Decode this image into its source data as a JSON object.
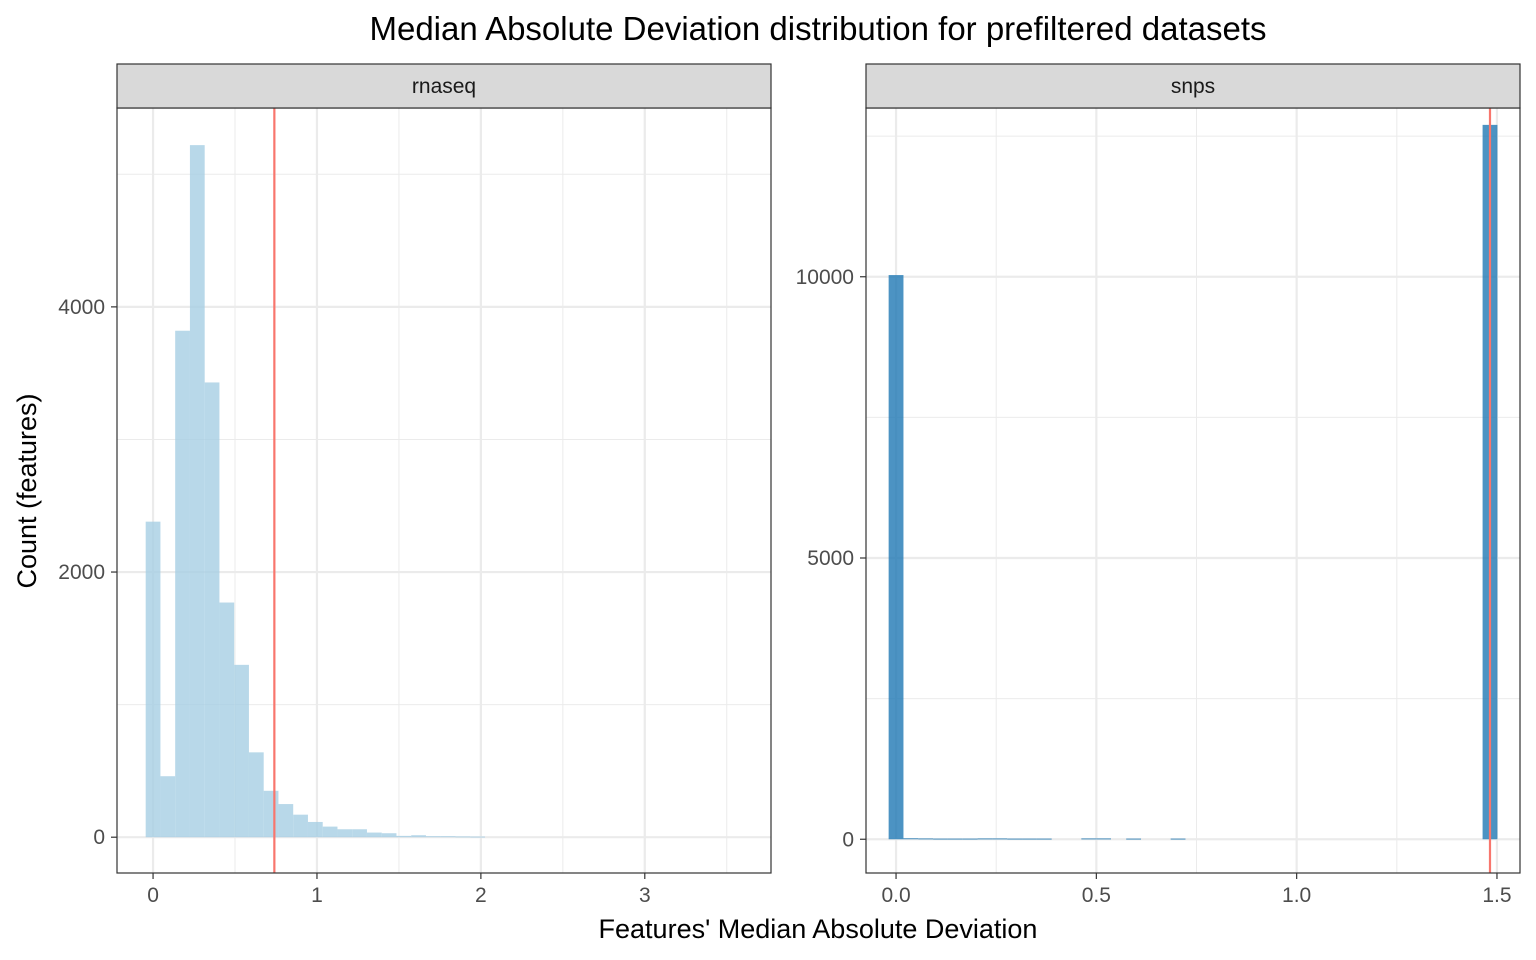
{
  "chart_data": {
    "type": "bar",
    "title": "Median Absolute Deviation distribution for prefiltered datasets",
    "xlabel": "Features' Median Absolute Deviation",
    "ylabel": "Count (features)",
    "grid": true,
    "legend": "none",
    "colors": {
      "panel_background": "#ffffff",
      "grid": "#ebebeb",
      "strip_fill": "#d9d9d9",
      "border": "#333333",
      "threshold_line": "#f8766d"
    },
    "panels": [
      {
        "strip_label": "rnaseq",
        "bar_color": "#a6cee3",
        "bar_opacity": 0.8,
        "threshold": 0.74,
        "xlim": [
          -0.22,
          3.77
        ],
        "ylim": [
          -270,
          5500
        ],
        "x_ticks": [
          0,
          1,
          2,
          3
        ],
        "x_tick_labels": [
          "0",
          "1",
          "2",
          "3"
        ],
        "x_minor_ticks": [
          0.5,
          1.5,
          2.5,
          3.5
        ],
        "y_ticks": [
          0,
          2000,
          4000
        ],
        "y_tick_labels": [
          "0",
          "2000",
          "4000"
        ],
        "y_minor_ticks": [
          1000,
          3000,
          5000
        ],
        "bin_width": 0.09,
        "bins": [
          {
            "x": 0.0,
            "count": 2380
          },
          {
            "x": 0.09,
            "count": 460
          },
          {
            "x": 0.18,
            "count": 3820
          },
          {
            "x": 0.27,
            "count": 5220
          },
          {
            "x": 0.36,
            "count": 3430
          },
          {
            "x": 0.45,
            "count": 1770
          },
          {
            "x": 0.54,
            "count": 1300
          },
          {
            "x": 0.63,
            "count": 640
          },
          {
            "x": 0.72,
            "count": 350
          },
          {
            "x": 0.81,
            "count": 250
          },
          {
            "x": 0.9,
            "count": 170
          },
          {
            "x": 0.99,
            "count": 115
          },
          {
            "x": 1.08,
            "count": 80
          },
          {
            "x": 1.17,
            "count": 60
          },
          {
            "x": 1.26,
            "count": 60
          },
          {
            "x": 1.35,
            "count": 35
          },
          {
            "x": 1.44,
            "count": 30
          },
          {
            "x": 1.53,
            "count": 10
          },
          {
            "x": 1.62,
            "count": 15
          },
          {
            "x": 1.71,
            "count": 8
          },
          {
            "x": 1.8,
            "count": 8
          },
          {
            "x": 1.89,
            "count": 6
          },
          {
            "x": 1.98,
            "count": 5
          }
        ]
      },
      {
        "strip_label": "snps",
        "bar_color": "#1f78b4",
        "bar_opacity": 0.8,
        "threshold": 1.4826,
        "xlim": [
          -0.075,
          1.5575
        ],
        "ylim": [
          -600,
          13000
        ],
        "x_ticks": [
          0.0,
          0.5,
          1.0,
          1.5
        ],
        "x_tick_labels": [
          "0.0",
          "0.5",
          "1.0",
          "1.5"
        ],
        "x_minor_ticks": [
          0.25,
          0.75,
          1.25
        ],
        "y_ticks": [
          0,
          5000,
          10000
        ],
        "y_tick_labels": [
          "0",
          "5000",
          "10000"
        ],
        "y_minor_ticks": [
          2500,
          7500,
          12500
        ],
        "bin_width": 0.037,
        "bins": [
          {
            "x": 0.0,
            "count": 10030
          },
          {
            "x": 0.037,
            "count": 18
          },
          {
            "x": 0.074,
            "count": 15
          },
          {
            "x": 0.111,
            "count": 12
          },
          {
            "x": 0.148,
            "count": 12
          },
          {
            "x": 0.185,
            "count": 12
          },
          {
            "x": 0.222,
            "count": 15
          },
          {
            "x": 0.259,
            "count": 15
          },
          {
            "x": 0.296,
            "count": 12
          },
          {
            "x": 0.333,
            "count": 12
          },
          {
            "x": 0.37,
            "count": 12
          },
          {
            "x": 0.481,
            "count": 15
          },
          {
            "x": 0.518,
            "count": 15
          },
          {
            "x": 0.593,
            "count": 12
          },
          {
            "x": 0.704,
            "count": 12
          },
          {
            "x": 1.4826,
            "count": 12700
          }
        ]
      }
    ]
  }
}
